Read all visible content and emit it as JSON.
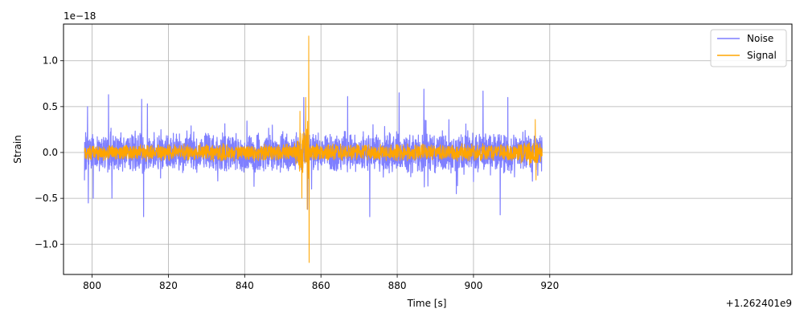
{
  "chart_data": {
    "type": "line",
    "xlabel": "Time [s]",
    "ylabel": "Strain",
    "y_scale_label": "1e−18",
    "x_offset_label": "+1.262401e9",
    "x_offset": 1262401000,
    "xlim": [
      792.5,
      983.5
    ],
    "ylim": [
      -1.33,
      1.4
    ],
    "x_ticks": [
      800,
      820,
      840,
      860,
      880,
      900,
      920
    ],
    "y_ticks": [
      -1.0,
      -0.5,
      0.0,
      0.5,
      1.0
    ],
    "x_tick_labels": [
      "800",
      "820",
      "840",
      "860",
      "880",
      "900",
      "920"
    ],
    "y_tick_labels": [
      "−1.0",
      "−0.5",
      "0.0",
      "0.5",
      "1.0"
    ],
    "grid": true,
    "legend_position": "top-right",
    "series": [
      {
        "name": "Noise",
        "color": "#7f7fff",
        "x_range": [
          798.0,
          918.0
        ],
        "typical_amplitude": 0.24,
        "peaks": [
          {
            "x": 798.8,
            "y": 0.5
          },
          {
            "x": 799.0,
            "y": -0.55
          },
          {
            "x": 800.3,
            "y": -0.5
          },
          {
            "x": 804.3,
            "y": 0.63
          },
          {
            "x": 805.2,
            "y": -0.5
          },
          {
            "x": 813.0,
            "y": 0.58
          },
          {
            "x": 813.5,
            "y": -0.7
          },
          {
            "x": 814.5,
            "y": 0.53
          },
          {
            "x": 855.5,
            "y": 0.6
          },
          {
            "x": 856.5,
            "y": -0.62
          },
          {
            "x": 867.0,
            "y": 0.61
          },
          {
            "x": 872.8,
            "y": -0.7
          },
          {
            "x": 880.5,
            "y": 0.65
          },
          {
            "x": 887.0,
            "y": 0.69
          },
          {
            "x": 895.5,
            "y": -0.45
          },
          {
            "x": 902.5,
            "y": 0.67
          },
          {
            "x": 907.0,
            "y": -0.68
          },
          {
            "x": 909.0,
            "y": 0.6
          }
        ]
      },
      {
        "name": "Signal",
        "color": "#ffa500",
        "x_range": [
          798.0,
          918.0
        ],
        "typical_amplitude": 0.1,
        "peaks": [
          {
            "x": 854.5,
            "y": 0.45
          },
          {
            "x": 855.0,
            "y": -0.5
          },
          {
            "x": 856.0,
            "y": 0.6
          },
          {
            "x": 856.4,
            "y": -0.62
          },
          {
            "x": 856.8,
            "y": 1.27
          },
          {
            "x": 856.9,
            "y": -1.2
          },
          {
            "x": 916.2,
            "y": 0.36
          },
          {
            "x": 916.4,
            "y": -0.3
          }
        ]
      }
    ]
  }
}
